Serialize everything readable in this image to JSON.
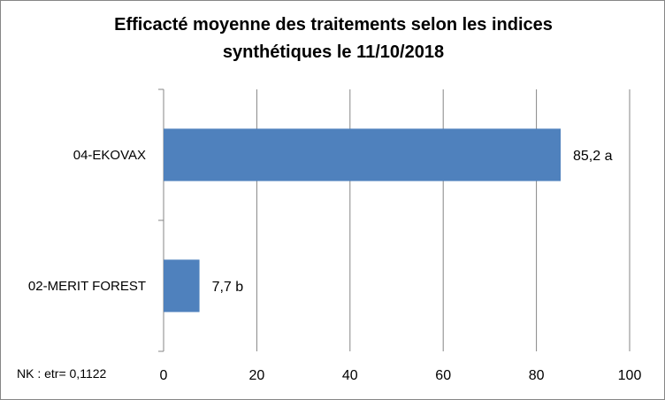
{
  "chart_data": {
    "type": "bar",
    "orientation": "horizontal",
    "title_lines": [
      "Efficacté moyenne des traitements selon les indices",
      "synthétiques le 11/10/2018"
    ],
    "categories": [
      "04-EKOVAX",
      "02-MERIT FOREST"
    ],
    "values": [
      85.2,
      7.7
    ],
    "data_labels": [
      "85,2 a",
      "7,7 b"
    ],
    "xlim": [
      0,
      100
    ],
    "xticks": [
      0,
      20,
      40,
      60,
      80,
      100
    ],
    "grid": "vertical",
    "bar_color": "#4f81bd",
    "xlabel": "",
    "ylabel": ""
  },
  "note": "NK : etr= 0,1122"
}
